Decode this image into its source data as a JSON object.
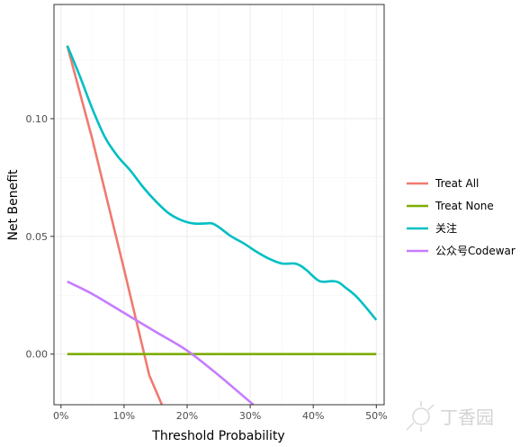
{
  "chart_data": {
    "type": "line",
    "xlabel": "Threshold Probability",
    "ylabel": "Net Benefit",
    "xlim": [
      -0.0111,
      0.5124
    ],
    "ylim": [
      -0.0215,
      0.1485
    ],
    "x_ticks": [
      0,
      0.1,
      0.2,
      0.3,
      0.4,
      0.5
    ],
    "x_tick_labels": [
      "0%",
      "10%",
      "20%",
      "30%",
      "40%",
      "50%"
    ],
    "y_ticks": [
      0.0,
      0.05,
      0.1
    ],
    "y_tick_labels": [
      "0.00",
      "0.05",
      "0.10"
    ],
    "grid": true,
    "legend": {
      "placement": "right",
      "entries": [
        {
          "label": "Treat All",
          "color": "#F07A70"
        },
        {
          "label": "Treat None",
          "color": "#7CAE00"
        },
        {
          "label": "关注",
          "color": "#00BFC4"
        },
        {
          "label": "公众号Codewar",
          "color": "#C77CFF"
        }
      ]
    },
    "series": [
      {
        "name": "Treat All",
        "color": "#F07A70",
        "x": [
          0.01,
          0.05,
          0.1,
          0.14,
          0.16
        ],
        "y": [
          0.131,
          0.091,
          0.036,
          -0.009,
          -0.0215
        ]
      },
      {
        "name": "Treat None",
        "color": "#7CAE00",
        "x": [
          0.01,
          0.5
        ],
        "y": [
          0.0,
          0.0
        ]
      },
      {
        "name": "关注",
        "color": "#00BFC4",
        "x": [
          0.01,
          0.03,
          0.05,
          0.07,
          0.09,
          0.11,
          0.13,
          0.15,
          0.17,
          0.19,
          0.21,
          0.23,
          0.24,
          0.25,
          0.27,
          0.29,
          0.31,
          0.33,
          0.35,
          0.37,
          0.38,
          0.39,
          0.41,
          0.43,
          0.44,
          0.45,
          0.47,
          0.5
        ],
        "y": [
          0.131,
          0.118,
          0.104,
          0.092,
          0.084,
          0.078,
          0.071,
          0.065,
          0.06,
          0.057,
          0.0555,
          0.0555,
          0.0555,
          0.054,
          0.05,
          0.047,
          0.0435,
          0.0405,
          0.0385,
          0.0385,
          0.0375,
          0.0355,
          0.031,
          0.031,
          0.0305,
          0.0285,
          0.024,
          0.0145
        ]
      },
      {
        "name": "公众号Codewar",
        "color": "#C77CFF",
        "x": [
          0.01,
          0.05,
          0.1,
          0.15,
          0.2,
          0.25,
          0.305
        ],
        "y": [
          0.0308,
          0.0255,
          0.0175,
          0.0095,
          0.0015,
          -0.009,
          -0.0215
        ]
      }
    ]
  },
  "watermark_text": "丁香园",
  "colors": {
    "panel_border": "#333333",
    "grid_major": "#ebebeb",
    "grid_minor": "#f5f5f5",
    "tick_text": "#4d4d4d"
  }
}
